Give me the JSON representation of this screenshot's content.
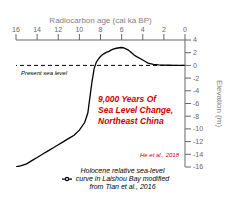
{
  "chart_data": {
    "type": "line",
    "xlabel": "Radiocarbon age (cal ka BP)",
    "ylabel": "Elevation (m)",
    "xlim": [
      16,
      0
    ],
    "ylim": [
      -16,
      4
    ],
    "xticks": [
      16,
      14,
      12,
      10,
      8,
      6,
      4,
      2,
      0
    ],
    "yticks": [
      4,
      2,
      0,
      -2,
      -4,
      -6,
      -8,
      -10,
      -12,
      -14,
      -16
    ],
    "x": [
      16.0,
      15.5,
      15.0,
      14.5,
      14.0,
      13.5,
      13.0,
      12.5,
      12.0,
      11.5,
      11.0,
      10.5,
      10.0,
      9.5,
      9.2,
      9.0,
      8.8,
      8.6,
      8.4,
      8.2,
      8.0,
      7.8,
      7.5,
      7.2,
      7.0,
      6.8,
      6.5,
      6.2,
      6.0,
      5.8,
      5.6,
      5.4,
      5.2,
      5.0,
      4.8,
      4.5,
      4.2,
      4.0,
      3.8,
      3.5,
      3.0,
      2.5,
      2.0,
      1.5,
      1.0,
      0.5,
      0.0
    ],
    "series": [
      {
        "name": "Holocene relative sea-level\ncurve in Laishou Bay modified\nfrom Tian et al.,  2016",
        "color": "#000000",
        "values": [
          -16.0,
          -15.8,
          -15.5,
          -15.0,
          -14.5,
          -14.0,
          -13.5,
          -13.0,
          -12.5,
          -12.0,
          -11.5,
          -11.0,
          -10.2,
          -9.0,
          -7.5,
          -5.0,
          -2.5,
          -0.5,
          0.5,
          1.0,
          1.4,
          1.7,
          2.0,
          2.2,
          2.4,
          2.55,
          2.7,
          2.78,
          2.82,
          2.75,
          2.6,
          2.45,
          2.2,
          1.9,
          1.6,
          1.3,
          1.05,
          0.85,
          0.65,
          0.35,
          0.15,
          0.08,
          0.05,
          0.02,
          0.0,
          0.0,
          0.0
        ]
      }
    ],
    "legend": "bottom",
    "reference_lines": [
      {
        "y": 0,
        "color": "#000000",
        "line_style": "dashed",
        "label": "Present sea level"
      }
    ],
    "annotations": [
      {
        "text": "9,000 Years Of\nSea Level Change,\nNortheast China",
        "color": "#cc0000"
      },
      {
        "text": "He et al., 2018",
        "color": "#cc0000"
      }
    ]
  }
}
